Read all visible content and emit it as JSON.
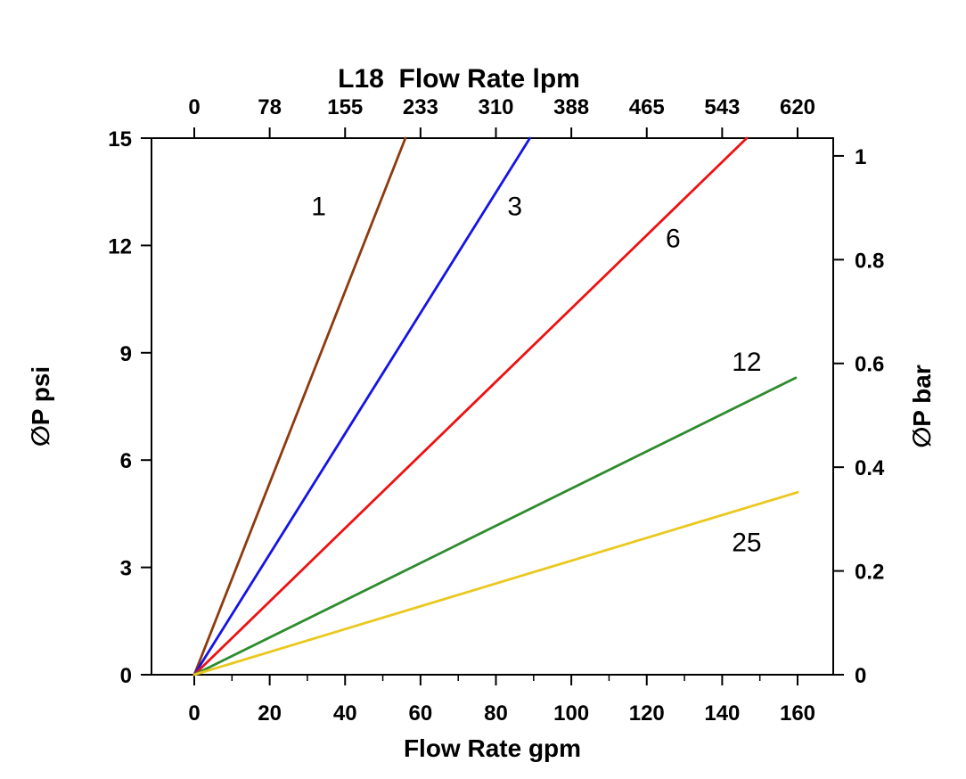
{
  "chart_data": {
    "type": "line",
    "title": "L18  Flow Rate lpm",
    "background": "#ffffff",
    "axis_color": "#000000",
    "legend": "none",
    "grid": false,
    "top_axis": {
      "title": "L18  Flow Rate lpm",
      "unit": "lpm",
      "ticks": [
        "0",
        "78",
        "155",
        "233",
        "310",
        "388",
        "465",
        "543",
        "620"
      ]
    },
    "bottom_axis": {
      "label": "Flow Rate gpm",
      "unit": "gpm",
      "ticks": [
        0,
        20,
        40,
        60,
        80,
        100,
        120,
        140,
        160
      ],
      "minor_ticks": [
        10,
        30,
        50,
        70,
        90,
        110,
        130,
        150
      ],
      "range": [
        0,
        160
      ]
    },
    "left_axis": {
      "label": "∅P psi",
      "unit": "psi",
      "ticks": [
        0,
        3,
        6,
        9,
        12,
        15
      ],
      "range": [
        0,
        15
      ]
    },
    "right_axis": {
      "label": "∅P bar",
      "unit": "bar",
      "ticks": [
        "0",
        "0.2",
        "0.4",
        "0.6",
        "0.8",
        "1"
      ],
      "psi_per_bar": 14.5038
    },
    "series": [
      {
        "name": "1",
        "color": "#8e3a0e",
        "points": [
          [
            0,
            0
          ],
          [
            56,
            15
          ]
        ],
        "label_pos": [
          33,
          13.1
        ]
      },
      {
        "name": "3",
        "color": "#1414e8",
        "points": [
          [
            0,
            0
          ],
          [
            89,
            15
          ]
        ],
        "label_pos": [
          85,
          13.1
        ]
      },
      {
        "name": "6",
        "color": "#ee1111",
        "points": [
          [
            0,
            0
          ],
          [
            146.5,
            15
          ]
        ],
        "label_pos": [
          127,
          12.2
        ]
      },
      {
        "name": "12",
        "color": "#2e8b2e",
        "points": [
          [
            0,
            0
          ],
          [
            159.5,
            8.3
          ]
        ],
        "label_pos": [
          146.5,
          8.75
        ]
      },
      {
        "name": "25",
        "color": "#eac81e",
        "points": [
          [
            0,
            0
          ],
          [
            160,
            5.1
          ]
        ],
        "label_pos": [
          146.5,
          3.7
        ]
      }
    ]
  }
}
